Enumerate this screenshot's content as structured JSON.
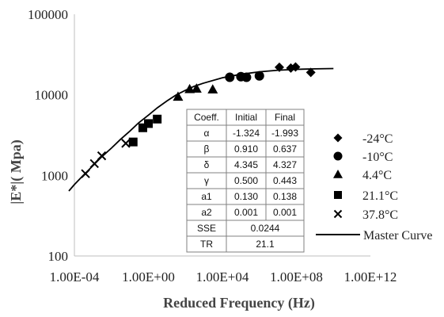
{
  "chart_data": {
    "type": "scatter",
    "title": "",
    "xlabel": "Reduced Frequency (Hz)",
    "ylabel": "|E*|( Mpa)",
    "x_scale": "log",
    "y_scale": "log",
    "xlim": [
      0.0001,
      1000000000000
    ],
    "ylim": [
      100,
      100000
    ],
    "x_ticks": [
      "1.00E-04",
      "1.00E+00",
      "1.00E+04",
      "1.00E+08",
      "1.00E+12"
    ],
    "y_ticks": [
      "100",
      "1000",
      "10000",
      "100000"
    ],
    "grid": false,
    "legend_position": "right",
    "series": [
      {
        "name": "-24°C",
        "marker": "diamond",
        "color": "#000000",
        "x": [
          12000000,
          50000000,
          90000000,
          600000000
        ],
        "y": [
          22000,
          21500,
          22200,
          19000
        ]
      },
      {
        "name": "-10°C",
        "marker": "circle",
        "color": "#000000",
        "x": [
          25000,
          100000,
          200000,
          1000000
        ],
        "y": [
          16500,
          16800,
          16500,
          17200
        ]
      },
      {
        "name": "4.4°C",
        "marker": "triangle",
        "color": "#000000",
        "x": [
          40,
          170,
          400,
          3000
        ],
        "y": [
          9500,
          11800,
          12000,
          11700
        ]
      },
      {
        "name": "21.1°C",
        "marker": "square",
        "color": "#000000",
        "x": [
          0.15,
          0.5,
          1.0,
          3.0
        ],
        "y": [
          2600,
          3900,
          4400,
          5000
        ]
      },
      {
        "name": "37.8°C",
        "marker": "x",
        "color": "#000000",
        "x": [
          0.0004,
          0.0012,
          0.003,
          0.06
        ],
        "y": [
          1050,
          1400,
          1750,
          2500
        ]
      }
    ],
    "master_curve": {
      "name": "Master Curve",
      "color": "#000000",
      "x": [
        5e-05,
        0.0001,
        0.0003,
        0.001,
        0.003,
        0.01,
        0.03,
        0.1,
        0.3,
        1,
        3,
        10,
        30,
        100,
        300,
        1000,
        10000,
        100000,
        1000000,
        10000000,
        100000000,
        1000000000,
        10000000000
      ],
      "y": [
        640,
        770,
        1000,
        1320,
        1700,
        2180,
        2780,
        3550,
        4500,
        5600,
        6900,
        8400,
        9900,
        11400,
        12800,
        14000,
        16300,
        18000,
        19300,
        20200,
        20700,
        21000,
        21200
      ]
    },
    "coefficients_table": {
      "headers": [
        "Coeff.",
        "Initial",
        "Final"
      ],
      "rows": [
        [
          "α",
          "-1.324",
          "-1.993"
        ],
        [
          "β",
          "0.910",
          "0.637"
        ],
        [
          "δ",
          "4.345",
          "4.327"
        ],
        [
          "γ",
          "0.500",
          "0.443"
        ],
        [
          "a1",
          "0.130",
          "0.138"
        ],
        [
          "a2",
          "0.001",
          "0.001"
        ]
      ],
      "merged_rows": [
        [
          "SSE",
          "0.0244"
        ],
        [
          "TR",
          "21.1"
        ]
      ]
    }
  }
}
